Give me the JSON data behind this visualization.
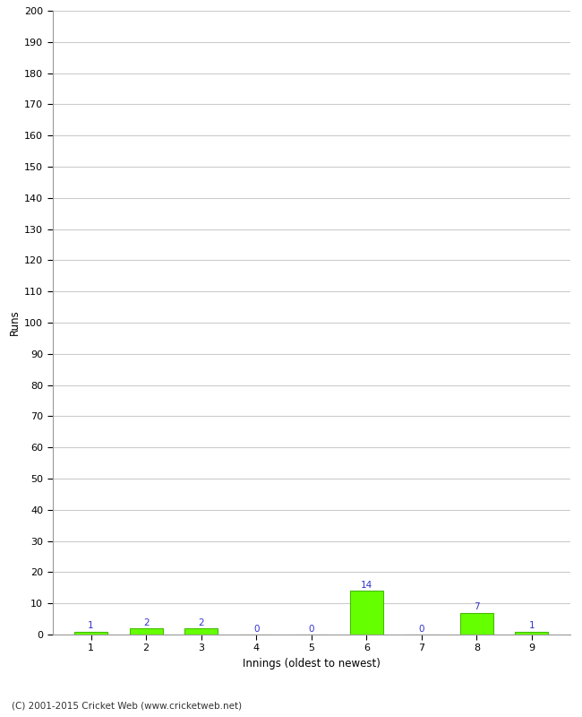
{
  "xlabel": "Innings (oldest to newest)",
  "ylabel": "Runs",
  "categories": [
    "1",
    "2",
    "3",
    "4",
    "5",
    "6",
    "7",
    "8",
    "9"
  ],
  "values": [
    1,
    2,
    2,
    0,
    0,
    14,
    0,
    7,
    1
  ],
  "bar_color": "#66ff00",
  "bar_edge_color": "#44bb00",
  "label_color": "#3333cc",
  "ylim": [
    0,
    200
  ],
  "yticks": [
    0,
    10,
    20,
    30,
    40,
    50,
    60,
    70,
    80,
    90,
    100,
    110,
    120,
    130,
    140,
    150,
    160,
    170,
    180,
    190,
    200
  ],
  "background_color": "#ffffff",
  "grid_color": "#cccccc",
  "footer": "(C) 2001-2015 Cricket Web (www.cricketweb.net)",
  "label_fontsize": 7.5,
  "axis_tick_fontsize": 8,
  "axis_label_fontsize": 8.5,
  "footer_fontsize": 7.5
}
